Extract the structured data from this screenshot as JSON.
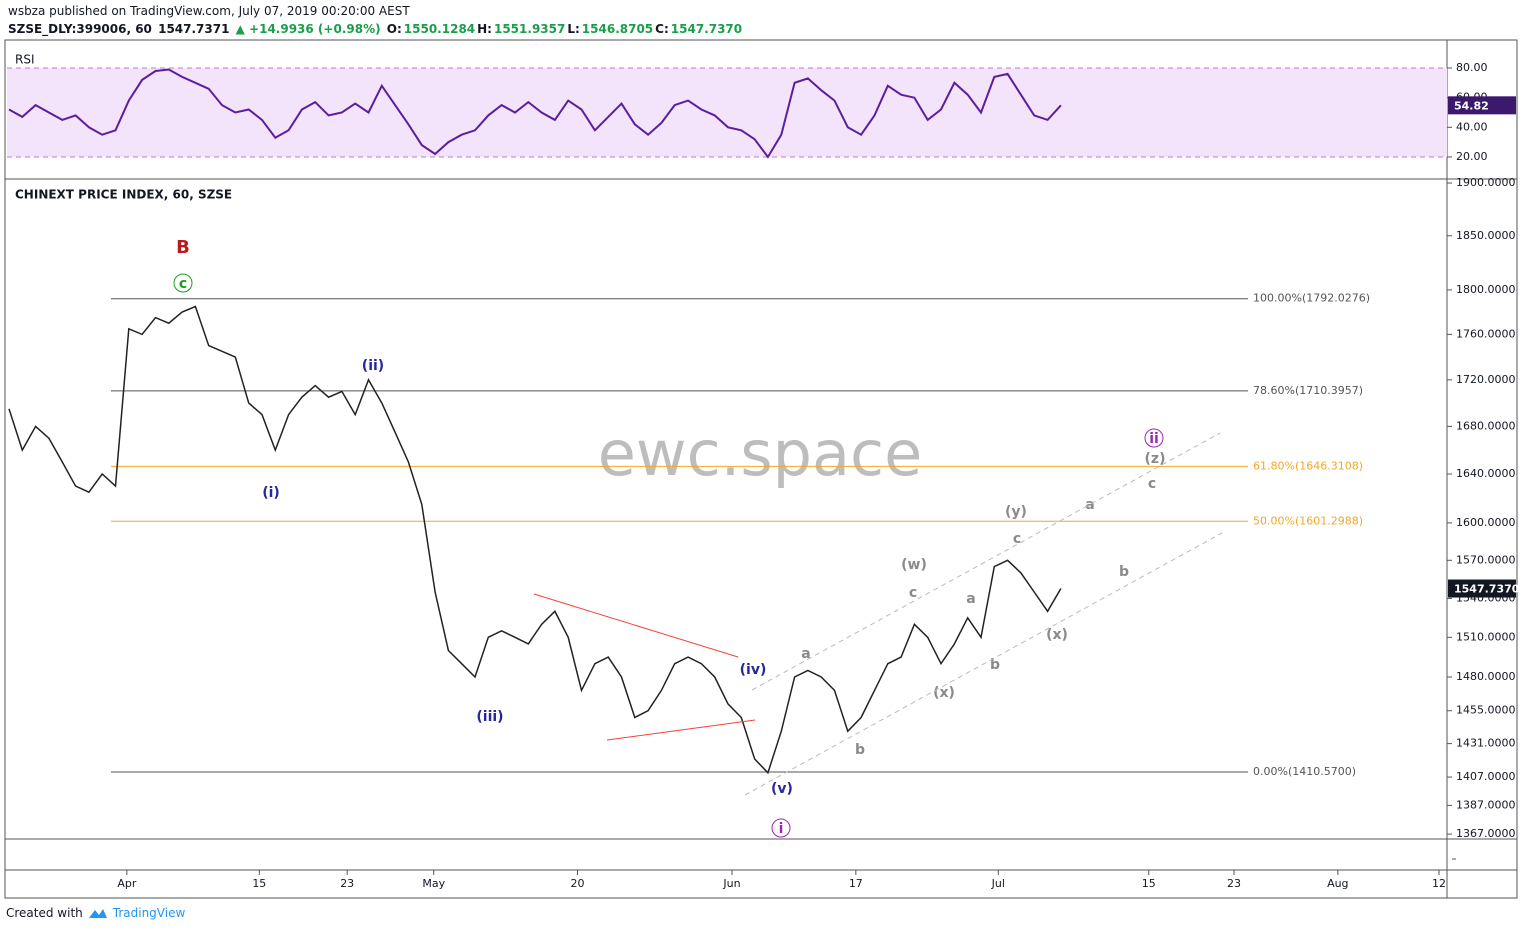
{
  "header": {
    "publisher": "wsbza published on TradingView.com, July 07, 2019 00:20:00 AEST",
    "symbol": "SZSE_DLY:399006, 60",
    "last": "1547.7371",
    "change": "▲ +14.9936 (+0.98%)",
    "ohlc": [
      {
        "label": "O:",
        "value": "1550.1284"
      },
      {
        "label": "H:",
        "value": "1551.9357"
      },
      {
        "label": "L:",
        "value": "1546.8705"
      },
      {
        "label": "C:",
        "value": "1547.7370"
      }
    ]
  },
  "footer": {
    "created": "Created with",
    "brand": "TradingView"
  },
  "watermark": "ewc.space",
  "chart_data": [
    {
      "type": "line",
      "title": "RSI",
      "color": "#5b1f9e",
      "band": [
        20,
        80
      ],
      "band_color": "#f3e3fb",
      "ylim": [
        5.8,
        98.9
      ],
      "yticks": [
        {
          "value": 20,
          "label": "20.00"
        },
        {
          "value": 40,
          "label": "40.00"
        },
        {
          "value": 60,
          "label": "60.00"
        },
        {
          "value": 80,
          "label": "80.00"
        }
      ],
      "current": 54.82,
      "x": [
        0,
        1,
        2,
        3,
        4,
        5,
        6,
        7,
        8,
        9,
        10,
        11,
        12,
        13,
        14,
        15,
        16,
        17,
        18,
        19,
        20,
        21,
        22,
        23,
        24,
        25,
        26,
        27,
        28,
        29,
        30,
        31,
        32,
        33,
        34,
        35,
        36,
        37,
        38,
        39,
        40,
        41,
        42,
        43,
        44,
        45,
        46,
        47,
        48,
        49,
        50,
        51,
        52,
        53,
        54,
        55,
        56,
        57,
        58,
        59,
        60,
        61,
        62,
        63,
        64,
        65,
        66,
        67,
        68,
        69,
        70,
        71,
        72,
        73,
        74,
        75,
        76,
        77,
        78,
        79
      ],
      "values": [
        52,
        47,
        55,
        50,
        45,
        48,
        40,
        35,
        38,
        58,
        72,
        78,
        79,
        74,
        70,
        66,
        55,
        50,
        52,
        45,
        33,
        38,
        52,
        57,
        48,
        50,
        56,
        50,
        68,
        55,
        42,
        28,
        22,
        30,
        35,
        38,
        48,
        55,
        50,
        57,
        50,
        45,
        58,
        52,
        38,
        47,
        56,
        42,
        35,
        43,
        55,
        58,
        52,
        48,
        40,
        38,
        32,
        20,
        35,
        70,
        73,
        65,
        58,
        40,
        35,
        48,
        68,
        62,
        60,
        45,
        52,
        70,
        62,
        50,
        74,
        76,
        62,
        48,
        45,
        54.82
      ]
    },
    {
      "type": "line",
      "title": "CHINEXT PRICE INDEX, 60, SZSE",
      "color": "#222222",
      "log_scale": true,
      "ylim": [
        1364.3,
        1902.9
      ],
      "xlim": [
        -0.15,
        108
      ],
      "yticks": [
        {
          "value": 1900,
          "label": "1900.0000"
        },
        {
          "value": 1850,
          "label": "1850.0000"
        },
        {
          "value": 1800,
          "label": "1800.0000"
        },
        {
          "value": 1760,
          "label": "1760.0000"
        },
        {
          "value": 1720,
          "label": "1720.0000"
        },
        {
          "value": 1680,
          "label": "1680.0000"
        },
        {
          "value": 1640,
          "label": "1640.0000"
        },
        {
          "value": 1600,
          "label": "1600.0000"
        },
        {
          "value": 1570,
          "label": "1570.0000"
        },
        {
          "value": 1540,
          "label": "1540.0000"
        },
        {
          "value": 1510,
          "label": "1510.0000"
        },
        {
          "value": 1480,
          "label": "1480.0000"
        },
        {
          "value": 1455,
          "label": "1455.0000"
        },
        {
          "value": 1431,
          "label": "1431.0000"
        },
        {
          "value": 1407,
          "label": "1407.0000"
        },
        {
          "value": 1387,
          "label": "1387.0000"
        },
        {
          "value": 1367,
          "label": "1367.0000"
        }
      ],
      "xticks": [
        {
          "value": 8.85,
          "label": "Apr"
        },
        {
          "value": 18.8,
          "label": "15"
        },
        {
          "value": 25.4,
          "label": "23"
        },
        {
          "value": 31.9,
          "label": "May"
        },
        {
          "value": 42.7,
          "label": "20"
        },
        {
          "value": 54.3,
          "label": "Jun"
        },
        {
          "value": 63.6,
          "label": "17"
        },
        {
          "value": 74.3,
          "label": "Jul"
        },
        {
          "value": 85.6,
          "label": "15"
        },
        {
          "value": 92,
          "label": "23"
        },
        {
          "value": 99.8,
          "label": "Aug"
        },
        {
          "value": 107.4,
          "label": "12"
        }
      ],
      "current": {
        "value": 1547.737,
        "label": "1547.7370"
      },
      "fib_levels": [
        {
          "value": 1792.0276,
          "label": "100.00%(1792.0276)",
          "color": "#555555"
        },
        {
          "value": 1710.3957,
          "label": "78.60%(1710.3957)",
          "color": "#555555"
        },
        {
          "value": 1646.3108,
          "label": "61.80%(1646.3108)",
          "color": "#f5a623"
        },
        {
          "value": 1601.2988,
          "label": "50.00%(1601.2988)",
          "color": "#f5a623"
        },
        {
          "value": 1410.57,
          "label": "0.00%(1410.5700)",
          "color": "#555555"
        }
      ],
      "annotations": [
        {
          "text": "B",
          "color": "#b71c1c"
        },
        {
          "text": "c",
          "color": "#1b9e1b",
          "circled": true
        },
        {
          "text": "(ii)",
          "color": "#28289a"
        },
        {
          "text": "(i)",
          "color": "#28289a"
        },
        {
          "text": "(iii)",
          "color": "#28289a"
        },
        {
          "text": "(iv)",
          "color": "#28289a"
        },
        {
          "text": "(v)",
          "color": "#28289a"
        },
        {
          "text": "i",
          "color": "#9c27b0",
          "circled": true
        },
        {
          "text": "a",
          "color": "#8a8a8a"
        },
        {
          "text": "b",
          "color": "#8a8a8a"
        },
        {
          "text": "(w)",
          "color": "#8a8a8a"
        },
        {
          "text": "c",
          "color": "#8a8a8a"
        },
        {
          "text": "(x)",
          "color": "#8a8a8a"
        },
        {
          "text": "a",
          "color": "#8a8a8a"
        },
        {
          "text": "b",
          "color": "#8a8a8a"
        },
        {
          "text": "(y)",
          "color": "#8a8a8a"
        },
        {
          "text": "c",
          "color": "#8a8a8a"
        },
        {
          "text": "(x)",
          "color": "#8a8a8a"
        },
        {
          "text": "a",
          "color": "#8a8a8a"
        },
        {
          "text": "b",
          "color": "#8a8a8a"
        },
        {
          "text": "c",
          "color": "#8a8a8a"
        },
        {
          "text": "(z)",
          "color": "#8a8a8a"
        },
        {
          "text": "ii",
          "color": "#9c27b0",
          "circled": true
        }
      ],
      "x": [
        0,
        1,
        2,
        3,
        4,
        5,
        6,
        7,
        8,
        9,
        10,
        11,
        12,
        13,
        14,
        15,
        16,
        17,
        18,
        19,
        20,
        21,
        22,
        23,
        24,
        25,
        26,
        27,
        28,
        29,
        30,
        31,
        32,
        33,
        34,
        35,
        36,
        37,
        38,
        39,
        40,
        41,
        42,
        43,
        44,
        45,
        46,
        47,
        48,
        49,
        50,
        51,
        52,
        53,
        54,
        55,
        56,
        57,
        58,
        59,
        60,
        61,
        62,
        63,
        64,
        65,
        66,
        67,
        68,
        69,
        70,
        71,
        72,
        73,
        74,
        75,
        76,
        77,
        78,
        79
      ],
      "values": [
        1695,
        1660,
        1680,
        1670,
        1650,
        1630,
        1625,
        1640,
        1630,
        1765,
        1760,
        1775,
        1770,
        1780,
        1785,
        1750,
        1745,
        1740,
        1700,
        1690,
        1660,
        1690,
        1705,
        1715,
        1705,
        1710,
        1690,
        1720,
        1700,
        1675,
        1650,
        1615,
        1545,
        1500,
        1490,
        1480,
        1510,
        1515,
        1510,
        1505,
        1520,
        1530,
        1510,
        1470,
        1490,
        1495,
        1480,
        1450,
        1455,
        1470,
        1490,
        1495,
        1490,
        1480,
        1460,
        1450,
        1420,
        1410,
        1440,
        1480,
        1485,
        1480,
        1470,
        1440,
        1450,
        1470,
        1490,
        1495,
        1520,
        1510,
        1490,
        1505,
        1525,
        1510,
        1565,
        1570,
        1560,
        1545,
        1530,
        1547.737
      ]
    }
  ]
}
